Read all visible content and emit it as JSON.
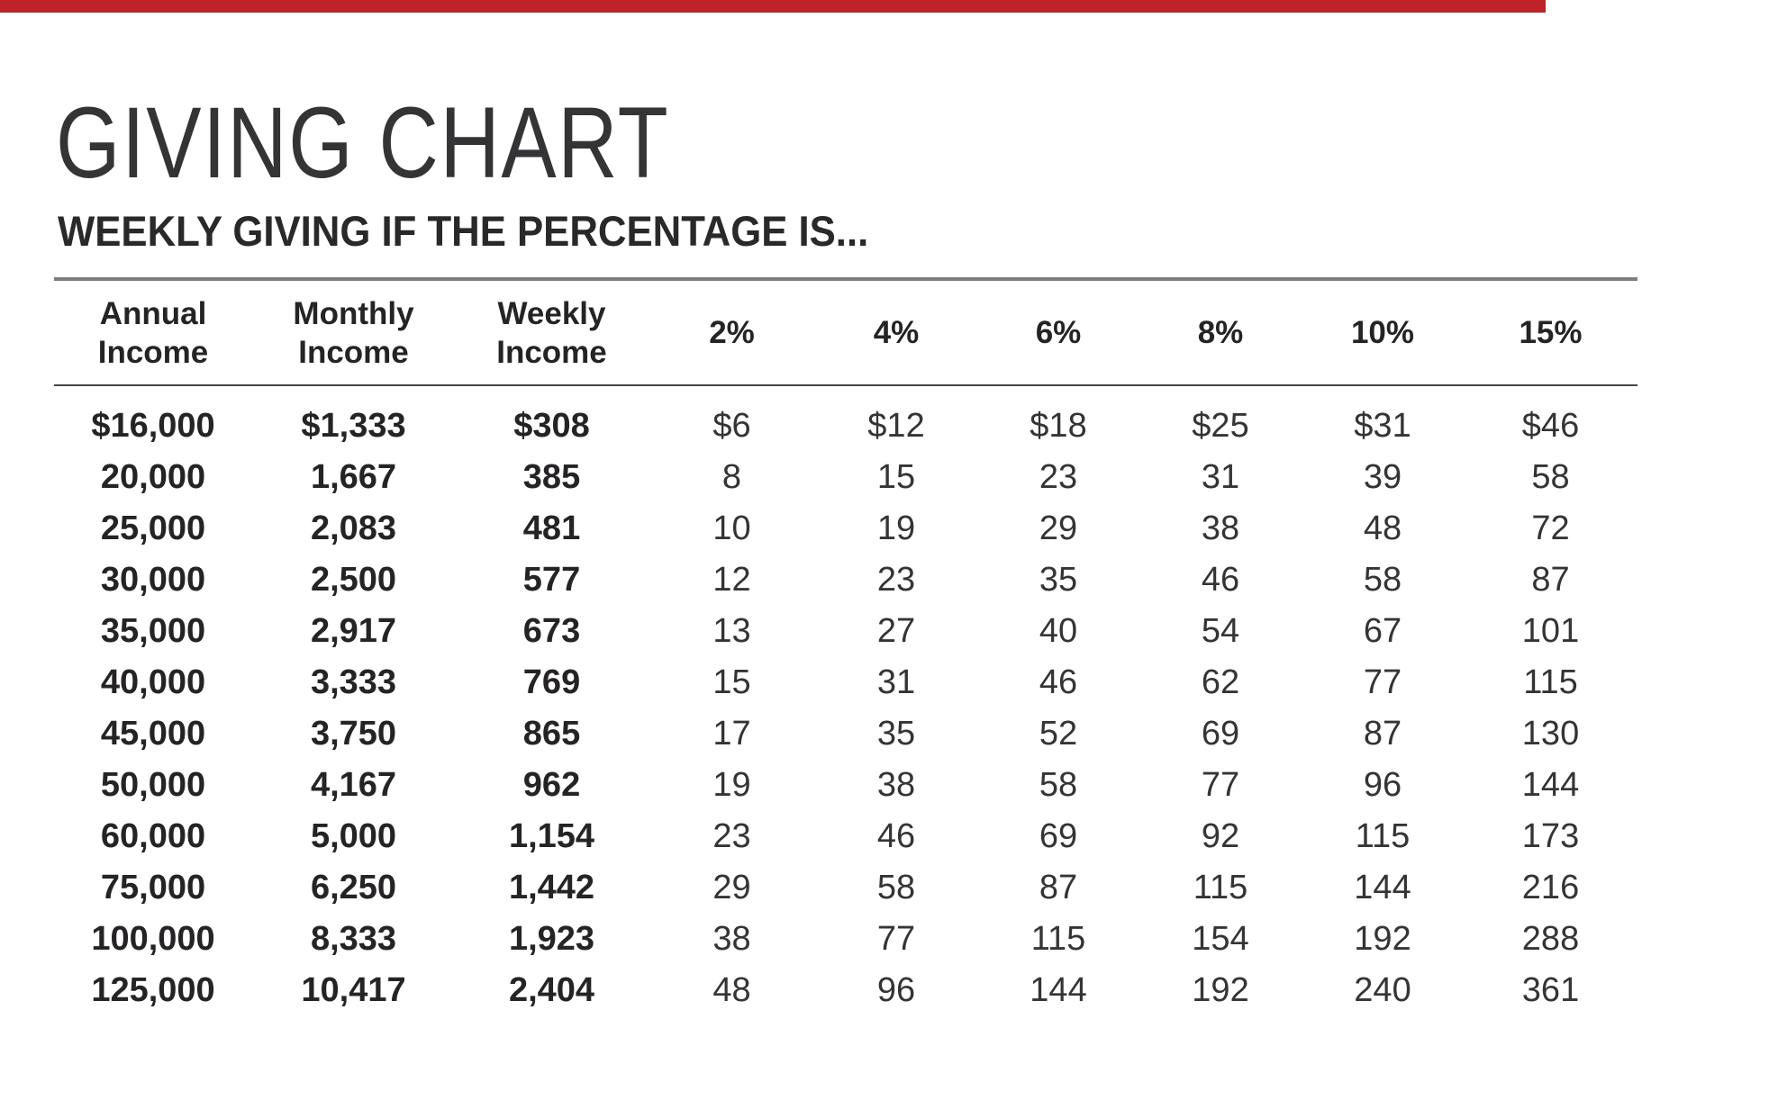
{
  "page": {
    "title": "GIVING CHART",
    "subtitle": "WEEKLY GIVING IF THE PERCENTAGE IS...",
    "accent_color": "#bf2227"
  },
  "table": {
    "headers": [
      {
        "line1": "Annual",
        "line2": "Income"
      },
      {
        "line1": "Monthly",
        "line2": "Income"
      },
      {
        "line1": "Weekly",
        "line2": "Income"
      },
      {
        "line1": "2%",
        "line2": ""
      },
      {
        "line1": "4%",
        "line2": ""
      },
      {
        "line1": "6%",
        "line2": ""
      },
      {
        "line1": "8%",
        "line2": ""
      },
      {
        "line1": "10%",
        "line2": ""
      },
      {
        "line1": "15%",
        "line2": ""
      }
    ],
    "rows": [
      [
        "$16,000",
        "$1,333",
        "$308",
        "$6",
        "$12",
        "$18",
        "$25",
        "$31",
        "$46"
      ],
      [
        "20,000",
        "1,667",
        "385",
        "8",
        "15",
        "23",
        "31",
        "39",
        "58"
      ],
      [
        "25,000",
        "2,083",
        "481",
        "10",
        "19",
        "29",
        "38",
        "48",
        "72"
      ],
      [
        "30,000",
        "2,500",
        "577",
        "12",
        "23",
        "35",
        "46",
        "58",
        "87"
      ],
      [
        "35,000",
        "2,917",
        "673",
        "13",
        "27",
        "40",
        "54",
        "67",
        "101"
      ],
      [
        "40,000",
        "3,333",
        "769",
        "15",
        "31",
        "46",
        "62",
        "77",
        "115"
      ],
      [
        "45,000",
        "3,750",
        "865",
        "17",
        "35",
        "52",
        "69",
        "87",
        "130"
      ],
      [
        "50,000",
        "4,167",
        "962",
        "19",
        "38",
        "58",
        "77",
        "96",
        "144"
      ],
      [
        "60,000",
        "5,000",
        "1,154",
        "23",
        "46",
        "69",
        "92",
        "115",
        "173"
      ],
      [
        "75,000",
        "6,250",
        "1,442",
        "29",
        "58",
        "87",
        "115",
        "144",
        "216"
      ],
      [
        "100,000",
        "8,333",
        "1,923",
        "38",
        "77",
        "115",
        "154",
        "192",
        "288"
      ],
      [
        "125,000",
        "10,417",
        "2,404",
        "48",
        "96",
        "144",
        "192",
        "240",
        "361"
      ]
    ]
  }
}
